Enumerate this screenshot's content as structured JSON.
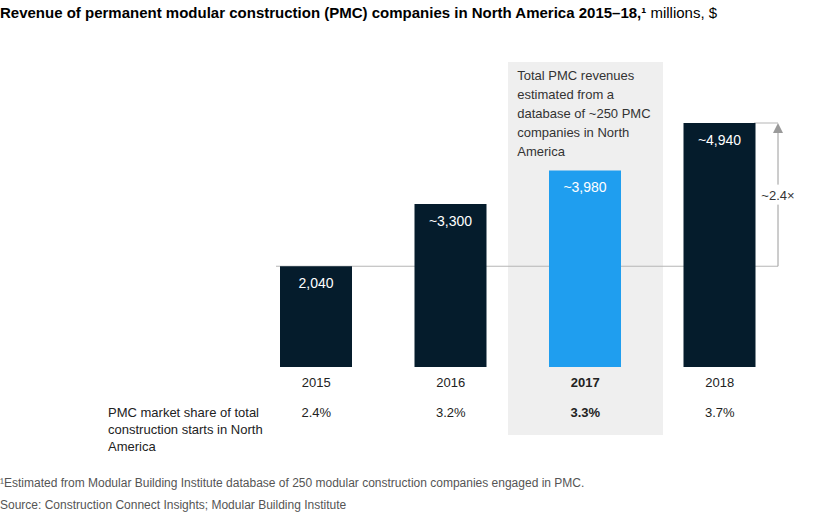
{
  "chart_data": {
    "type": "bar",
    "title": "Revenue of permanent modular construction (PMC) companies in North America 2015–18,¹",
    "subtitle": "millions, $",
    "categories": [
      "2015",
      "2016",
      "2017",
      "2018"
    ],
    "values": [
      2040,
      3300,
      3980,
      4940
    ],
    "value_labels": [
      "2,040",
      "~3,300",
      "~3,980",
      "~4,940"
    ],
    "colors": [
      "#051c2c",
      "#051c2c",
      "#1f9eef",
      "#051c2c"
    ],
    "data_labels": true,
    "tick_labels": "x",
    "grid": false,
    "annotations": [
      "Total PMC revenues estimated from a database of ~250 PMC companies in North America",
      "~2.4×"
    ],
    "table": {
      "label": "PMC market share of total construction starts in North America",
      "values": [
        "2.4%",
        "3.2%",
        "3.3%",
        "3.7%"
      ]
    },
    "footnote": "¹Estimated from Modular Building Institute database of 250 modular construction companies engaged in PMC.",
    "source": "Source: Construction Connect Insights; Modular Building Institute"
  }
}
